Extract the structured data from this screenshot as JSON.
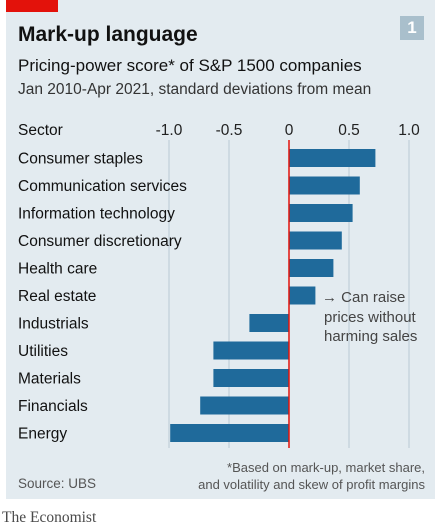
{
  "figure_number": "1",
  "publisher": "The Economist",
  "source": "Source: UBS",
  "footnote": [
    "*Based on mark-up, market share,",
    "and volatility and skew of profit margins"
  ],
  "chart_data": {
    "type": "bar",
    "orientation": "horizontal",
    "title": "Mark-up language",
    "subtitle": "Pricing-power score* of S&P 1500 companies",
    "subtitle2": "Jan 2010-Apr 2021, standard deviations from mean",
    "category_axis_label": "Sector",
    "categories": [
      "Consumer staples",
      "Communication services",
      "Information technology",
      "Consumer discretionary",
      "Health care",
      "Real estate",
      "Industrials",
      "Utilities",
      "Materials",
      "Financials",
      "Energy"
    ],
    "values": [
      0.72,
      0.59,
      0.53,
      0.44,
      0.37,
      0.22,
      -0.33,
      -0.63,
      -0.63,
      -0.74,
      -0.99
    ],
    "xlim": [
      -1.2,
      1.2
    ],
    "ticks": [
      -1.0,
      -0.5,
      0,
      0.5,
      1.0
    ],
    "tick_labels": [
      "-1.0",
      "-0.5",
      "0",
      "0.5",
      "1.0"
    ],
    "grid": "vertical",
    "zero_line_color": "#e3120b",
    "bar_color": "#1f6a9b",
    "annotation": [
      "→ Can raise",
      "prices without",
      "harming sales"
    ]
  },
  "colors": {
    "background": "#e3ebf0",
    "brand_red": "#e3120b",
    "bar": "#1f6a9b",
    "grid": "#b9c9d3",
    "badge": "#a9bfcc"
  }
}
